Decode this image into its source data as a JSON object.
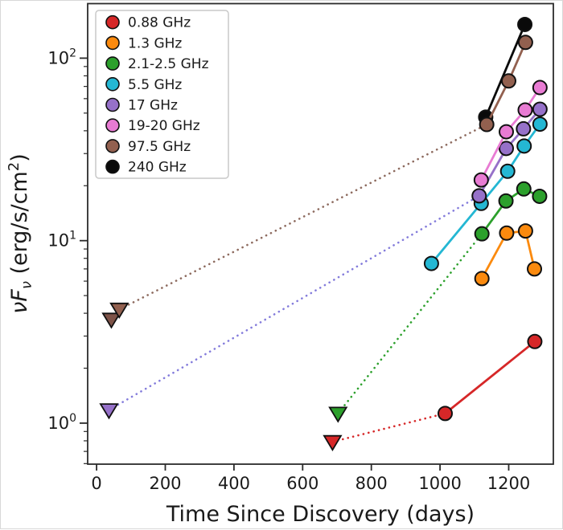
{
  "figure": {
    "background": "#ffffff",
    "frame_color": "#2b2b2b"
  },
  "chart_data": {
    "type": "line",
    "title": "",
    "xlabel": "Time Since Discovery (days)",
    "ylabel": "νFν (erg/s/cm²)",
    "ylabel_parts": {
      "nu_f": "νF",
      "sub": "ν",
      "mid": " (erg/s/cm",
      "sup": "2",
      "end": ")"
    },
    "xlim": [
      -26,
      1330
    ],
    "ylim": [
      0.596,
      199
    ],
    "y_scale": "log",
    "grid": false,
    "legend_position": "upper left",
    "x_ticks": [
      0,
      200,
      400,
      600,
      800,
      1000,
      1200
    ],
    "y_major_ticks": [
      {
        "value": 1,
        "base": "10",
        "exponent": "0"
      },
      {
        "value": 10,
        "base": "10",
        "exponent": "1"
      },
      {
        "value": 100,
        "base": "10",
        "exponent": "2"
      }
    ],
    "series": [
      {
        "name": "0.88 GHz",
        "color": "#d62728",
        "upper_limits": [
          {
            "t": 687,
            "v": 0.79
          }
        ],
        "dotted": [
          [
            687,
            0.79
          ],
          [
            1015,
            1.13
          ]
        ],
        "points": [
          [
            1015,
            1.13
          ],
          [
            1276,
            2.8
          ]
        ]
      },
      {
        "name": "1.3 GHz",
        "color": "#fb8a0e",
        "upper_limits": [],
        "dotted": [],
        "points": [
          [
            1122,
            6.2
          ],
          [
            1194,
            11.0
          ],
          [
            1249,
            11.3
          ],
          [
            1275,
            7.0
          ]
        ]
      },
      {
        "name": "2.1-2.5 GHz",
        "color": "#2ca02c",
        "upper_limits": [
          {
            "t": 703,
            "v": 1.13
          }
        ],
        "dotted": [
          [
            703,
            1.13
          ],
          [
            1122,
            10.9
          ]
        ],
        "points": [
          [
            1122,
            10.9
          ],
          [
            1192,
            16.5
          ],
          [
            1244,
            19.2
          ],
          [
            1290,
            17.5
          ]
        ]
      },
      {
        "name": "5.5 GHz",
        "color": "#24b7d3",
        "upper_limits": [],
        "dotted": [],
        "points": [
          [
            975,
            7.5
          ],
          [
            1120,
            16.0
          ],
          [
            1197,
            24.0
          ],
          [
            1245,
            33.0
          ],
          [
            1291,
            43.5
          ]
        ]
      },
      {
        "name": "17 GHz",
        "color": "#9671c9",
        "dotted_color": "#837bdb",
        "upper_limits": [
          {
            "t": 36,
            "v": 1.18
          }
        ],
        "dotted": [
          [
            36,
            1.18
          ],
          [
            1114,
            17.6
          ]
        ],
        "points": [
          [
            1114,
            17.6
          ],
          [
            1193,
            32.0
          ],
          [
            1243,
            41.0
          ],
          [
            1291,
            52.5
          ]
        ]
      },
      {
        "name": "19-20 GHz",
        "color": "#e87bd3",
        "upper_limits": [],
        "dotted": [],
        "points": [
          [
            1120,
            21.5
          ],
          [
            1193,
            39.5
          ],
          [
            1248,
            52.0
          ],
          [
            1291,
            69.0
          ]
        ]
      },
      {
        "name": "240 GHz",
        "color": "#0a0a0a",
        "upper_limits": [],
        "dotted": [],
        "points": [
          [
            1133,
            47.5
          ],
          [
            1247,
            153.0
          ]
        ]
      },
      {
        "name": "97.5 GHz",
        "color": "#92604f",
        "dotted_color": "#8d6a5e",
        "upper_limits": [
          {
            "t": 43,
            "v": 3.7,
            "fill": "#7e5348"
          },
          {
            "t": 66,
            "v": 4.2
          }
        ],
        "dotted": [
          [
            66,
            4.2
          ],
          [
            1136,
            43.3
          ]
        ],
        "points": [
          [
            1136,
            43.3
          ],
          [
            1200,
            75.0
          ],
          [
            1249,
            122.0
          ]
        ]
      }
    ]
  },
  "legend": {
    "items": [
      {
        "label": "0.88 GHz",
        "color": "#d62728"
      },
      {
        "label": "1.3 GHz",
        "color": "#fb8a0e"
      },
      {
        "label": "2.1-2.5 GHz",
        "color": "#2ca02c"
      },
      {
        "label": "5.5 GHz",
        "color": "#24b7d3"
      },
      {
        "label": "17 GHz",
        "color": "#9671c9"
      },
      {
        "label": "19-20 GHz",
        "color": "#e87bd3"
      },
      {
        "label": "97.5 GHz",
        "color": "#92604f"
      },
      {
        "label": "240 GHz",
        "color": "#0a0a0a"
      }
    ]
  }
}
